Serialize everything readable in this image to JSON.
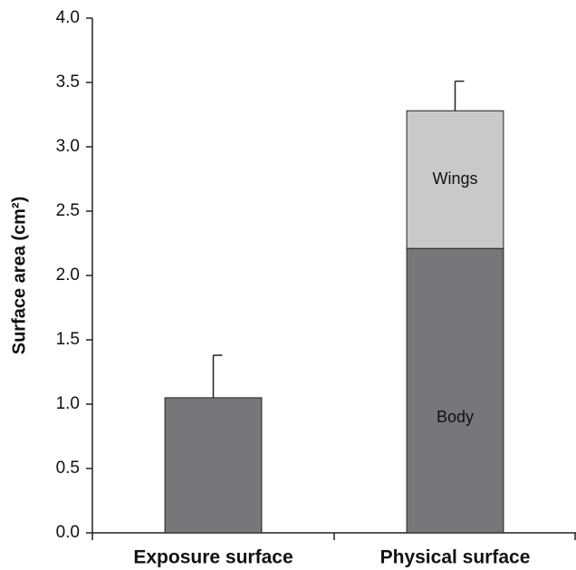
{
  "chart_data": {
    "type": "stacked_bar",
    "ylabel": "Surface area (cm²)",
    "categories": [
      "Exposure surface",
      "Physical surface"
    ],
    "series": [
      {
        "name": "Body",
        "color": "#76777a",
        "values": [
          1.05,
          2.21
        ]
      },
      {
        "name": "Wings",
        "color": "#c8c9cb",
        "values": [
          null,
          1.07
        ]
      }
    ],
    "errors": [
      0.33,
      0.23
    ],
    "ylim": [
      0,
      4
    ],
    "yticks": [
      {
        "value": 0,
        "label": "0.0"
      },
      0.5,
      {
        "value": 1,
        "label": "1.0"
      },
      1.5,
      {
        "value": 2,
        "label": "2.0"
      },
      2.5,
      {
        "value": 3,
        "label": "3.0"
      },
      3.5,
      {
        "value": 4,
        "label": "4.0"
      }
    ],
    "grid": false
  }
}
